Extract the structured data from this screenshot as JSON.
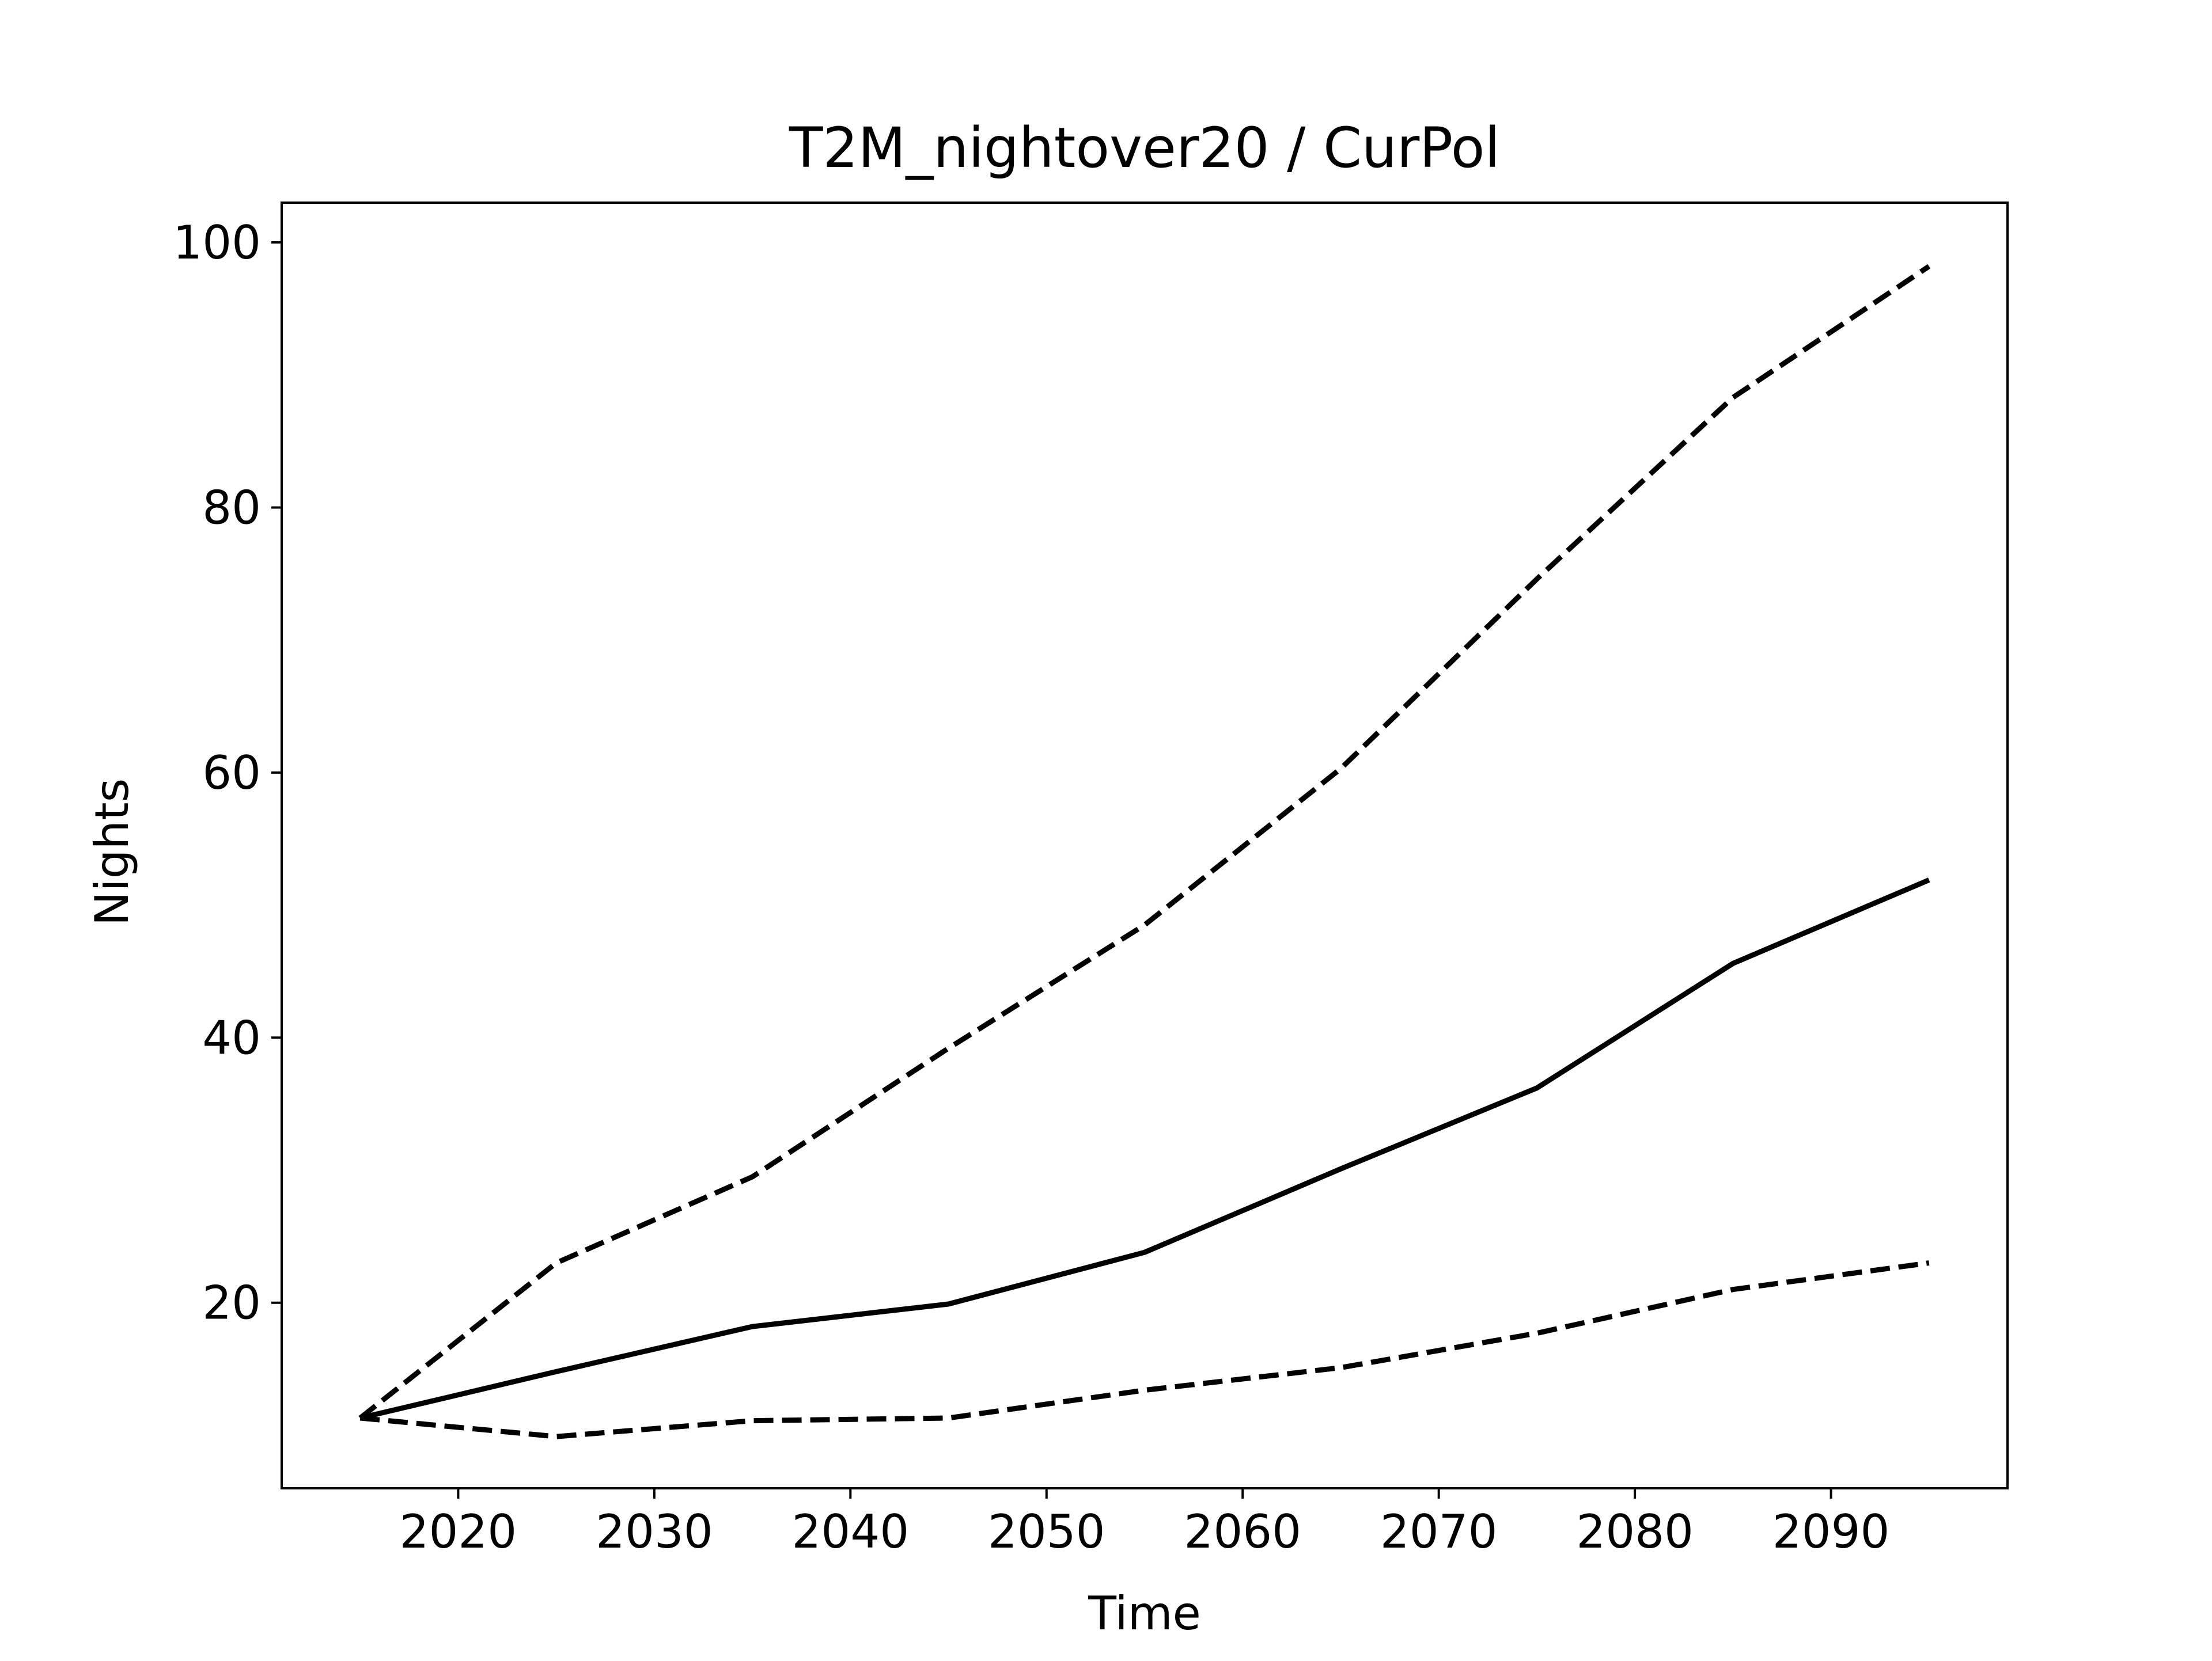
{
  "chart_data": {
    "type": "line",
    "title": "T2M_nightover20 / CurPol",
    "xlabel": "Time",
    "ylabel": "Nights",
    "xlim": [
      2011,
      2099
    ],
    "ylim": [
      6,
      103
    ],
    "xticks": [
      2020,
      2030,
      2040,
      2050,
      2060,
      2070,
      2080,
      2090
    ],
    "yticks": [
      20,
      40,
      60,
      80,
      100
    ],
    "xtick_labels": [
      "2020",
      "2030",
      "2040",
      "2050",
      "2060",
      "2070",
      "2080",
      "2090"
    ],
    "ytick_labels": [
      "20",
      "40",
      "60",
      "80",
      "100"
    ],
    "grid": false,
    "legend": "none",
    "series": [
      {
        "style": "dashed",
        "color": "#000000",
        "x": [
          2015,
          2025,
          2035,
          2045,
          2055,
          2065,
          2075,
          2085,
          2095
        ],
        "y": [
          11.3,
          23.0,
          29.5,
          39.2,
          48.5,
          60.3,
          74.6,
          88.3,
          98.2
        ]
      },
      {
        "style": "solid",
        "color": "#000000",
        "x": [
          2015,
          2025,
          2035,
          2045,
          2055,
          2065,
          2075,
          2085,
          2095
        ],
        "y": [
          11.3,
          14.8,
          18.2,
          19.9,
          23.8,
          30.1,
          36.2,
          45.6,
          51.9
        ]
      },
      {
        "style": "dashed",
        "color": "#000000",
        "x": [
          2015,
          2025,
          2035,
          2045,
          2055,
          2065,
          2075,
          2085,
          2095
        ],
        "y": [
          11.3,
          9.9,
          11.1,
          11.3,
          13.4,
          15.1,
          17.7,
          21.0,
          23.0
        ]
      }
    ]
  }
}
